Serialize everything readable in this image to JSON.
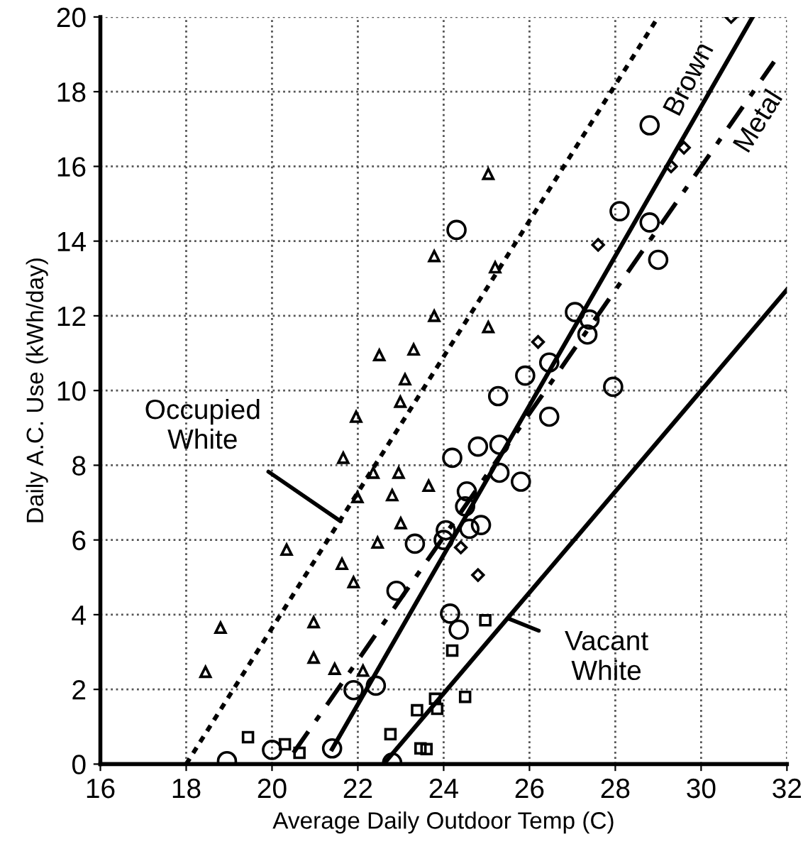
{
  "chart_data": {
    "type": "scatter",
    "xlabel": "Average Daily Outdoor Temp (C)",
    "ylabel": "Daily A.C. Use (kWh/day)",
    "xlim": [
      16,
      32
    ],
    "ylim": [
      0,
      20
    ],
    "xticks": [
      16,
      18,
      20,
      22,
      24,
      26,
      28,
      30,
      32
    ],
    "yticks": [
      0,
      2,
      4,
      6,
      8,
      10,
      12,
      14,
      16,
      18,
      20
    ],
    "grid": true,
    "series": [
      {
        "marker": "triangle",
        "color": "#000000",
        "x": [
          18.45,
          18.8,
          20.34,
          20.97,
          20.97,
          21.46,
          21.63,
          21.9,
          21.66,
          21.96,
          21.99,
          22.36,
          22.46,
          22.95,
          22.8,
          23.0,
          22.99,
          23.65,
          22.12,
          23.78,
          23.78,
          22.5,
          23.3,
          23.1,
          25.04,
          25.04,
          25.2
        ],
        "values": [
          2.47,
          3.65,
          5.74,
          3.8,
          2.85,
          2.55,
          5.36,
          4.87,
          8.2,
          9.3,
          7.15,
          7.8,
          5.93,
          7.8,
          7.2,
          6.45,
          9.7,
          7.45,
          2.5,
          13.6,
          12.0,
          10.95,
          11.1,
          10.3,
          15.8,
          11.7,
          13.3
        ]
      },
      {
        "marker": "circle",
        "color": "#000000",
        "x": [
          18.95,
          20.0,
          21.4,
          21.9,
          22.42,
          22.8,
          22.9,
          23.33,
          25.27,
          26.46,
          27.95,
          24.2,
          24.8,
          25.3,
          25.8,
          25.3,
          24.54,
          24.5,
          24.87,
          24.6,
          24.05,
          24.0,
          24.15,
          24.35,
          24.3,
          28.8,
          28.1,
          28.8,
          29.0,
          25.9,
          27.06,
          27.4,
          27.35,
          26.46
        ],
        "values": [
          0.08,
          0.38,
          0.42,
          1.98,
          2.1,
          0.04,
          4.64,
          5.9,
          9.85,
          9.3,
          10.1,
          8.2,
          8.5,
          8.55,
          7.56,
          7.8,
          7.3,
          6.9,
          6.4,
          6.3,
          6.26,
          6.0,
          4.03,
          3.6,
          14.3,
          17.1,
          14.8,
          14.5,
          13.5,
          10.4,
          12.1,
          11.9,
          11.5,
          10.75
        ]
      },
      {
        "marker": "diamond",
        "color": "#000000",
        "x": [
          24.4,
          24.8,
          26.2,
          27.6,
          29.6,
          29.3,
          30.7
        ],
        "values": [
          5.8,
          5.06,
          11.3,
          13.9,
          16.5,
          16.0,
          20.0
        ]
      },
      {
        "marker": "square",
        "color": "#000000",
        "x": [
          19.44,
          20.3,
          20.64,
          22.76,
          23.46,
          23.38,
          23.8,
          23.85,
          24.5,
          24.2,
          24.97,
          23.6
        ],
        "values": [
          0.72,
          0.53,
          0.3,
          0.8,
          0.42,
          1.44,
          1.75,
          1.48,
          1.8,
          3.04,
          3.85,
          0.4
        ]
      },
      {
        "type": "line",
        "line_style": "dotted",
        "color": "#000000",
        "x": [
          18,
          29
        ],
        "values": [
          0,
          20
        ]
      },
      {
        "type": "line",
        "line_style": "solid",
        "color": "#000000",
        "x": [
          21.4,
          31.2
        ],
        "values": [
          0.4,
          20
        ]
      },
      {
        "type": "line",
        "line_style": "dashed",
        "color": "#000000",
        "x": [
          20.5,
          31.7
        ],
        "values": [
          0.3,
          18.8
        ]
      },
      {
        "type": "line",
        "line_style": "solid",
        "color": "#000000",
        "x": [
          22.6,
          32
        ],
        "values": [
          0,
          12.7
        ]
      }
    ],
    "annotations": [
      {
        "text": "Occupied\nWhite",
        "x": 21.6,
        "y": 6.5
      },
      {
        "text": "Vacant\nWhite",
        "x": 25.5,
        "y": 3.9
      },
      {
        "text": "Brown",
        "x": 30.2,
        "y": 18.0
      },
      {
        "text": "Metal",
        "x": 30.9,
        "y": 17.5
      }
    ]
  }
}
